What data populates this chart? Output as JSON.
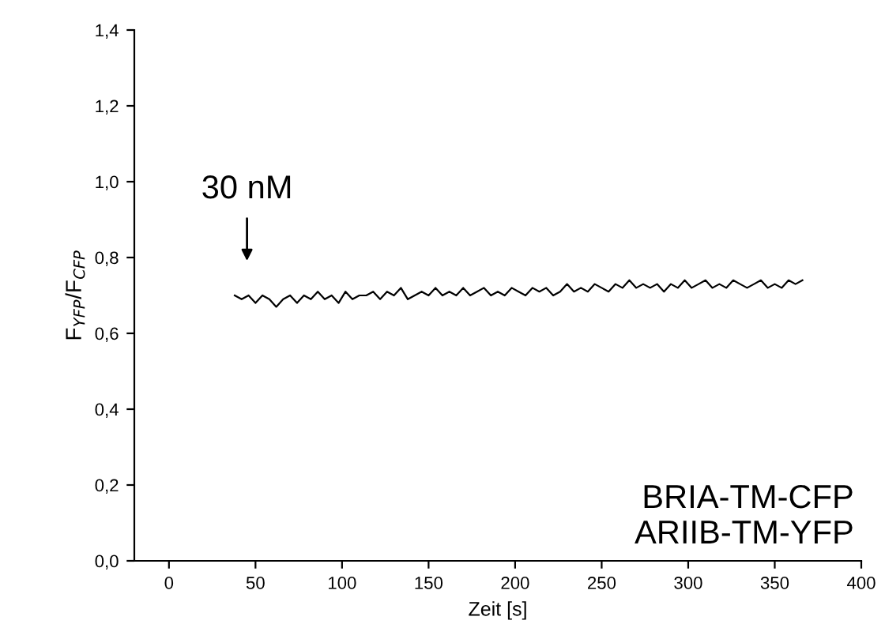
{
  "chart_data": {
    "type": "line",
    "xlabel": "Zeit [s]",
    "ylabel": "F$_{YFP}$/F$_{CFP}$",
    "xlim": [
      -20,
      400
    ],
    "ylim": [
      0,
      1.4
    ],
    "xticks": [
      0,
      50,
      100,
      150,
      200,
      250,
      300,
      350,
      400
    ],
    "yticks": [
      {
        "value": 0,
        "label": "0,0"
      },
      {
        "value": 0.2,
        "label": "0,2"
      },
      {
        "value": 0.4,
        "label": "0,4"
      },
      {
        "value": 0.6,
        "label": "0,6"
      },
      {
        "value": 0.8,
        "label": "0,8"
      },
      {
        "value": 1.0,
        "label": "1,0"
      },
      {
        "value": 1.2,
        "label": "1,2"
      },
      {
        "value": 1.4,
        "label": "1,4"
      }
    ],
    "grid": false,
    "legend": false,
    "marker": "none",
    "line_style": "solid",
    "series": [
      {
        "color": "#000000",
        "x": [
          38,
          42,
          46,
          50,
          54,
          58,
          62,
          66,
          70,
          74,
          78,
          82,
          86,
          90,
          94,
          98,
          102,
          106,
          110,
          114,
          118,
          122,
          126,
          130,
          134,
          138,
          142,
          146,
          150,
          154,
          158,
          162,
          166,
          170,
          174,
          178,
          182,
          186,
          190,
          194,
          198,
          202,
          206,
          210,
          214,
          218,
          222,
          226,
          230,
          234,
          238,
          242,
          246,
          250,
          254,
          258,
          262,
          266,
          270,
          274,
          278,
          282,
          286,
          290,
          294,
          298,
          302,
          306,
          310,
          314,
          318,
          322,
          326,
          330,
          334,
          338,
          342,
          346,
          350,
          354,
          358,
          362,
          366
        ],
        "values": [
          0.7,
          0.69,
          0.7,
          0.68,
          0.7,
          0.69,
          0.67,
          0.69,
          0.7,
          0.68,
          0.7,
          0.69,
          0.71,
          0.69,
          0.7,
          0.68,
          0.71,
          0.69,
          0.7,
          0.7,
          0.71,
          0.69,
          0.71,
          0.7,
          0.72,
          0.69,
          0.7,
          0.71,
          0.7,
          0.72,
          0.7,
          0.71,
          0.7,
          0.72,
          0.7,
          0.71,
          0.72,
          0.7,
          0.71,
          0.7,
          0.72,
          0.71,
          0.7,
          0.72,
          0.71,
          0.72,
          0.7,
          0.71,
          0.73,
          0.71,
          0.72,
          0.71,
          0.73,
          0.72,
          0.71,
          0.73,
          0.72,
          0.74,
          0.72,
          0.73,
          0.72,
          0.73,
          0.71,
          0.73,
          0.72,
          0.74,
          0.72,
          0.73,
          0.74,
          0.72,
          0.73,
          0.72,
          0.74,
          0.73,
          0.72,
          0.73,
          0.74,
          0.72,
          0.73,
          0.72,
          0.74,
          0.73,
          0.74
        ]
      }
    ],
    "annotations": [
      "30 nM",
      "BRIA-TM-CFP\nARIIB-TM-YFP"
    ]
  }
}
